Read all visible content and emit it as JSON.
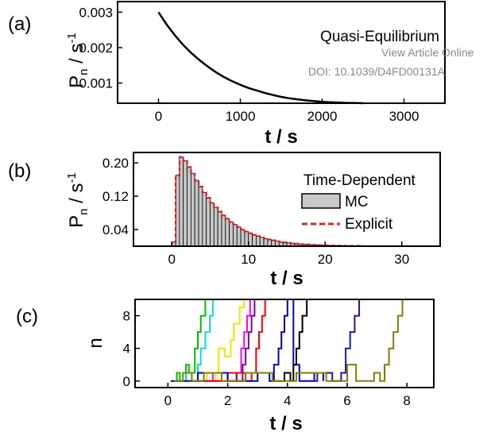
{
  "watermark": {
    "line1": "View Article Online",
    "line2": "DOI: 10.1039/D4FD00131A"
  },
  "chart_data": [
    {
      "panel": "(a)",
      "type": "line",
      "xlabel": "t / s",
      "ylabel_main": "P",
      "ylabel_sub": "n",
      "ylabel_unit": " / s",
      "ylabel_exp": "-1",
      "xlim": [
        -500,
        3500
      ],
      "ylim": [
        0.00043,
        0.0033
      ],
      "xticks": [
        0,
        1000,
        2000,
        3000
      ],
      "yticks": [
        0.001,
        0.002,
        0.003
      ],
      "ytick_labels": [
        "0.001",
        "0.002",
        "0.003"
      ],
      "annotation": "Quasi-Equilibrium",
      "series": [
        {
          "color": "#000000",
          "x": [
            0,
            100,
            200,
            300,
            400,
            500,
            600,
            700,
            800,
            900,
            1000,
            1100,
            1200,
            1300,
            1400,
            1500,
            1600,
            1700,
            1800,
            1900,
            2000,
            2100,
            2200,
            2300,
            2400,
            2500
          ],
          "y": [
            0.003,
            0.00265,
            0.00235,
            0.00208,
            0.00185,
            0.00165,
            0.00147,
            0.00131,
            0.00117,
            0.00105,
            0.00095,
            0.00086,
            0.00079,
            0.00072,
            0.00066,
            0.00061,
            0.00057,
            0.00054,
            0.00051,
            0.00049,
            0.00047,
            0.00046,
            0.00045,
            0.00044,
            0.00044,
            0.00043
          ]
        }
      ]
    },
    {
      "panel": "(b)",
      "type": "bar",
      "xlabel": "t / s",
      "ylabel_main": "P",
      "ylabel_sub": "n",
      "ylabel_unit": " / s",
      "ylabel_exp": "-1",
      "xlim": [
        -5,
        35
      ],
      "ylim": [
        0,
        0.225
      ],
      "xticks": [
        0,
        10,
        20,
        30
      ],
      "yticks": [
        0.04,
        0.12,
        0.2
      ],
      "ytick_labels": [
        "0.04",
        "0.12",
        "0.20"
      ],
      "legend_title": "Time-Dependent",
      "legend": [
        {
          "name": "MC",
          "style": "box",
          "color": "#c8c8c8"
        },
        {
          "name": "Explicit",
          "style": "dash",
          "color": "#d62728"
        }
      ],
      "bin_width": 0.5,
      "bins_x": [
        0.0,
        0.5,
        1.0,
        1.5,
        2.0,
        2.5,
        3.0,
        3.5,
        4.0,
        4.5,
        5.0,
        5.5,
        6.0,
        6.5,
        7.0,
        7.5,
        8.0,
        8.5,
        9.0,
        9.5,
        10.0,
        10.5,
        11.0,
        11.5,
        12.0,
        12.5,
        13.0,
        13.5,
        14.0,
        14.5,
        15.0,
        15.5,
        16.0,
        16.5,
        17.0,
        17.5,
        18.0,
        18.5,
        19.0,
        19.5,
        20.0,
        20.5,
        21.0,
        21.5,
        22.0,
        22.5,
        23.0,
        23.5,
        24.0,
        24.5
      ],
      "bins_y": [
        0.01,
        0.17,
        0.214,
        0.205,
        0.19,
        0.174,
        0.158,
        0.143,
        0.129,
        0.116,
        0.104,
        0.093,
        0.083,
        0.074,
        0.066,
        0.058,
        0.052,
        0.046,
        0.04,
        0.035,
        0.031,
        0.027,
        0.024,
        0.021,
        0.018,
        0.016,
        0.014,
        0.012,
        0.01,
        0.009,
        0.008,
        0.007,
        0.006,
        0.005,
        0.0045,
        0.004,
        0.0035,
        0.003,
        0.0026,
        0.0023,
        0.002,
        0.0018,
        0.0016,
        0.0014,
        0.0012,
        0.001,
        0.0009,
        0.0008,
        0.0007,
        0.0006
      ],
      "explicit_color": "#d62728"
    },
    {
      "panel": "(c)",
      "type": "line",
      "xlabel": "t / s",
      "ylabel": "n",
      "xlim": [
        -1.1,
        8.9
      ],
      "ylim": [
        -0.8,
        10
      ],
      "xticks": [
        0,
        2,
        4,
        6,
        8
      ],
      "yticks": [
        0,
        4,
        8
      ],
      "series": [
        {
          "color": "#00c000",
          "x": [
            0.1,
            0.3,
            0.4,
            0.6,
            0.7,
            0.9,
            1.0,
            1.1,
            1.25
          ],
          "y": [
            0,
            1,
            0,
            2,
            1,
            4,
            6,
            8,
            10
          ]
        },
        {
          "color": "#00e0e0",
          "x": [
            0.3,
            0.6,
            0.8,
            1.0,
            1.1,
            1.25,
            1.4,
            1.5
          ],
          "y": [
            0,
            1,
            0,
            2,
            4,
            6,
            8,
            10
          ]
        },
        {
          "color": "#e8e800",
          "x": [
            0.6,
            1.0,
            1.3,
            1.6,
            1.7,
            1.9,
            2.1,
            2.2,
            2.4,
            2.55
          ],
          "y": [
            0,
            1,
            0,
            1,
            4,
            3,
            5,
            7,
            9,
            10
          ]
        },
        {
          "color": "#ff00ff",
          "x": [
            0.9,
            1.5,
            2.0,
            2.3,
            2.45,
            2.55,
            2.65,
            2.75
          ],
          "y": [
            0,
            1,
            0,
            1,
            4,
            6,
            8,
            10
          ]
        },
        {
          "color": "#8000a0",
          "x": [
            1.0,
            1.8,
            2.3,
            2.5,
            2.6,
            2.7,
            2.8,
            2.9
          ],
          "y": [
            0,
            1,
            0,
            2,
            4,
            6,
            8,
            10
          ]
        },
        {
          "color": "#ff0000",
          "x": [
            1.2,
            2.0,
            2.6,
            2.8,
            2.95,
            3.05,
            3.15,
            3.25
          ],
          "y": [
            0,
            1,
            0,
            1,
            4,
            6,
            8,
            10
          ]
        },
        {
          "color": "#0000c0",
          "x": [
            0.1,
            1.0,
            2.0,
            3.0,
            3.4,
            3.55,
            3.7,
            3.8,
            3.9,
            4.0,
            4.2,
            4.4,
            4.9,
            5.2
          ],
          "y": [
            0,
            1,
            0,
            1,
            0,
            2,
            4,
            6,
            8,
            10,
            2,
            0,
            1,
            0
          ]
        },
        {
          "color": "#000000",
          "x": [
            3.5,
            3.9,
            4.1,
            4.2,
            4.3,
            4.4,
            4.5,
            4.65
          ],
          "y": [
            0,
            1,
            0,
            2,
            4,
            6,
            8,
            10
          ]
        },
        {
          "color": "#1a1aa6",
          "x": [
            4.4,
            5.0,
            5.5,
            5.8,
            5.95,
            6.1,
            6.25,
            6.4
          ],
          "y": [
            0,
            1,
            0,
            1,
            4,
            6,
            8,
            10
          ]
        },
        {
          "color": "#808000",
          "x": [
            0.2,
            0.5,
            0.8,
            1.2,
            1.8,
            2.6,
            3.5,
            4.3,
            5.3,
            6.0,
            6.3,
            6.9,
            7.1,
            7.25,
            7.4,
            7.55,
            7.7,
            7.85
          ],
          "y": [
            0,
            1,
            0,
            1,
            0,
            1,
            0,
            1,
            0,
            2,
            0,
            1,
            0,
            2,
            4,
            6,
            8,
            10
          ]
        }
      ]
    }
  ]
}
